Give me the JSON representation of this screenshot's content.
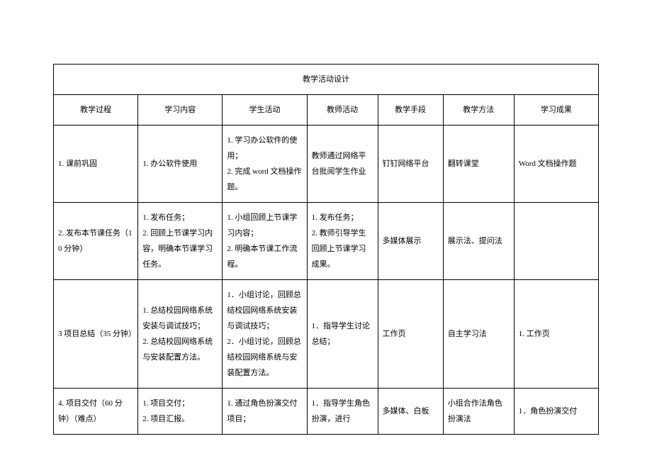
{
  "table": {
    "title": "教学活动设计",
    "headers": {
      "c1": "教学过程",
      "c2": "学习内容",
      "c3": "学生活动",
      "c4": "教师活动",
      "c5": "教学手段",
      "c6": "教学方法",
      "c7": "学习成果"
    },
    "rows": [
      {
        "c1": "1. 课前巩固",
        "c2": "1. 办公软件使用",
        "c3": "1. 学习办公软件的使用；\n2. 完成 word 文档操作题。",
        "c4": "教师通过网络平台批阅学生作业",
        "c5": "钉钉网络平台",
        "c6": "翻转课堂",
        "c7": "Word 文档操作题"
      },
      {
        "c1": "2. 发布本节课任务（10 分钟）",
        "c2": "1. 发布任务；\n2. 回顾上节课学习内容，明确本节课学习任务。",
        "c3": "1. 小组回顾上节课学习内容；\n2. 明确本节课工作流程。",
        "c4": "1. 发布任务；\n2. 教师引导学生回顾上节课学习成果。",
        "c5": "多媒体展示",
        "c6": "展示法、提问法",
        "c7": ""
      },
      {
        "c1": "3 项目总结（35 分钟）",
        "c2": "1. 总结校园网络系统安装与调试技巧；\n2. 总结校园网络系统与安装配置方法。",
        "c3": "1．小组讨论，回顾总结校园网络系统安装与调试技巧；\n2．小组讨论，回顾总结校园网络系统与安装配置方法。",
        "c4": "1．指导学生讨论总结；",
        "c5": "工作页",
        "c6": "自主学习法",
        "c7": "1. 工作页"
      },
      {
        "c1": "4. 项目交付（60 分钟）（难点）",
        "c2": "1. 项目交付；\n2. 项目汇报。",
        "c3": "1. 通过角色扮演交付项目；",
        "c4": "1．指导学生角色扮演，进行",
        "c5": "多媒体、白板",
        "c6": "小组合作法角色扮演法",
        "c7": "1．角色扮演交付"
      }
    ]
  }
}
